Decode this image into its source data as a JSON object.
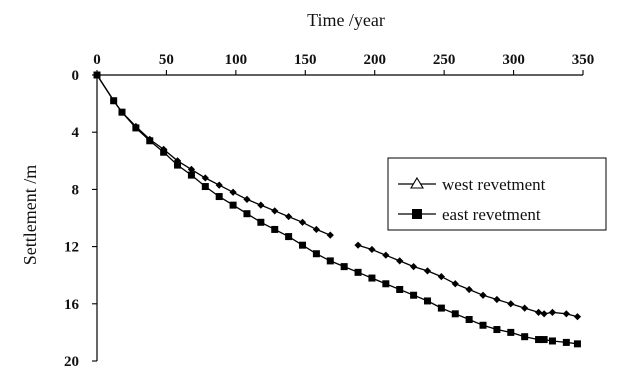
{
  "chart_data": {
    "type": "line",
    "title": "",
    "xlabel": "Time /year",
    "ylabel": "Settlement /m",
    "xlim": [
      0,
      350
    ],
    "ylim": [
      0,
      20
    ],
    "y_inverted": true,
    "x_axis_position": "top",
    "grid": false,
    "legend_position": "right-center",
    "x_ticks": [
      0,
      50,
      100,
      150,
      200,
      250,
      300,
      350
    ],
    "y_ticks": [
      0,
      4,
      8,
      12,
      16,
      20
    ],
    "series": [
      {
        "name": "west revetment",
        "legend_marker": "triangle-open",
        "marker": "diamond",
        "color": "#000000",
        "segments": [
          [
            [
              0,
              0
            ],
            [
              12,
              1.8
            ],
            [
              18,
              2.6
            ],
            [
              28,
              3.6
            ],
            [
              38,
              4.5
            ],
            [
              48,
              5.2
            ],
            [
              58,
              6.0
            ],
            [
              68,
              6.6
            ],
            [
              78,
              7.2
            ],
            [
              88,
              7.7
            ],
            [
              98,
              8.2
            ],
            [
              108,
              8.7
            ],
            [
              118,
              9.1
            ],
            [
              128,
              9.5
            ],
            [
              138,
              9.9
            ],
            [
              148,
              10.3
            ],
            [
              158,
              10.8
            ],
            [
              168,
              11.2
            ]
          ],
          [
            [
              188,
              11.9
            ],
            [
              198,
              12.2
            ],
            [
              208,
              12.6
            ],
            [
              218,
              13.0
            ],
            [
              228,
              13.4
            ],
            [
              238,
              13.7
            ],
            [
              248,
              14.1
            ],
            [
              258,
              14.6
            ],
            [
              268,
              15.0
            ],
            [
              278,
              15.4
            ],
            [
              288,
              15.7
            ],
            [
              298,
              16.0
            ],
            [
              308,
              16.3
            ],
            [
              318,
              16.6
            ],
            [
              322,
              16.7
            ],
            [
              328,
              16.6
            ],
            [
              338,
              16.7
            ],
            [
              346,
              16.9
            ]
          ]
        ]
      },
      {
        "name": "east revetment",
        "legend_marker": "square-filled",
        "marker": "square",
        "color": "#000000",
        "segments": [
          [
            [
              0,
              0
            ],
            [
              12,
              1.8
            ],
            [
              18,
              2.6
            ],
            [
              28,
              3.7
            ],
            [
              38,
              4.6
            ],
            [
              48,
              5.4
            ],
            [
              58,
              6.3
            ],
            [
              68,
              7.0
            ],
            [
              78,
              7.8
            ],
            [
              88,
              8.5
            ],
            [
              98,
              9.1
            ],
            [
              108,
              9.7
            ],
            [
              118,
              10.3
            ],
            [
              128,
              10.8
            ],
            [
              138,
              11.3
            ],
            [
              148,
              11.9
            ],
            [
              158,
              12.5
            ],
            [
              168,
              13.0
            ],
            [
              178,
              13.4
            ],
            [
              188,
              13.8
            ],
            [
              198,
              14.2
            ],
            [
              208,
              14.6
            ],
            [
              218,
              15.0
            ],
            [
              228,
              15.4
            ],
            [
              238,
              15.8
            ],
            [
              248,
              16.3
            ],
            [
              258,
              16.7
            ],
            [
              268,
              17.1
            ],
            [
              278,
              17.5
            ],
            [
              288,
              17.8
            ],
            [
              298,
              18.0
            ],
            [
              308,
              18.3
            ],
            [
              318,
              18.5
            ],
            [
              322,
              18.5
            ],
            [
              328,
              18.6
            ],
            [
              338,
              18.7
            ],
            [
              346,
              18.8
            ]
          ]
        ]
      }
    ]
  }
}
